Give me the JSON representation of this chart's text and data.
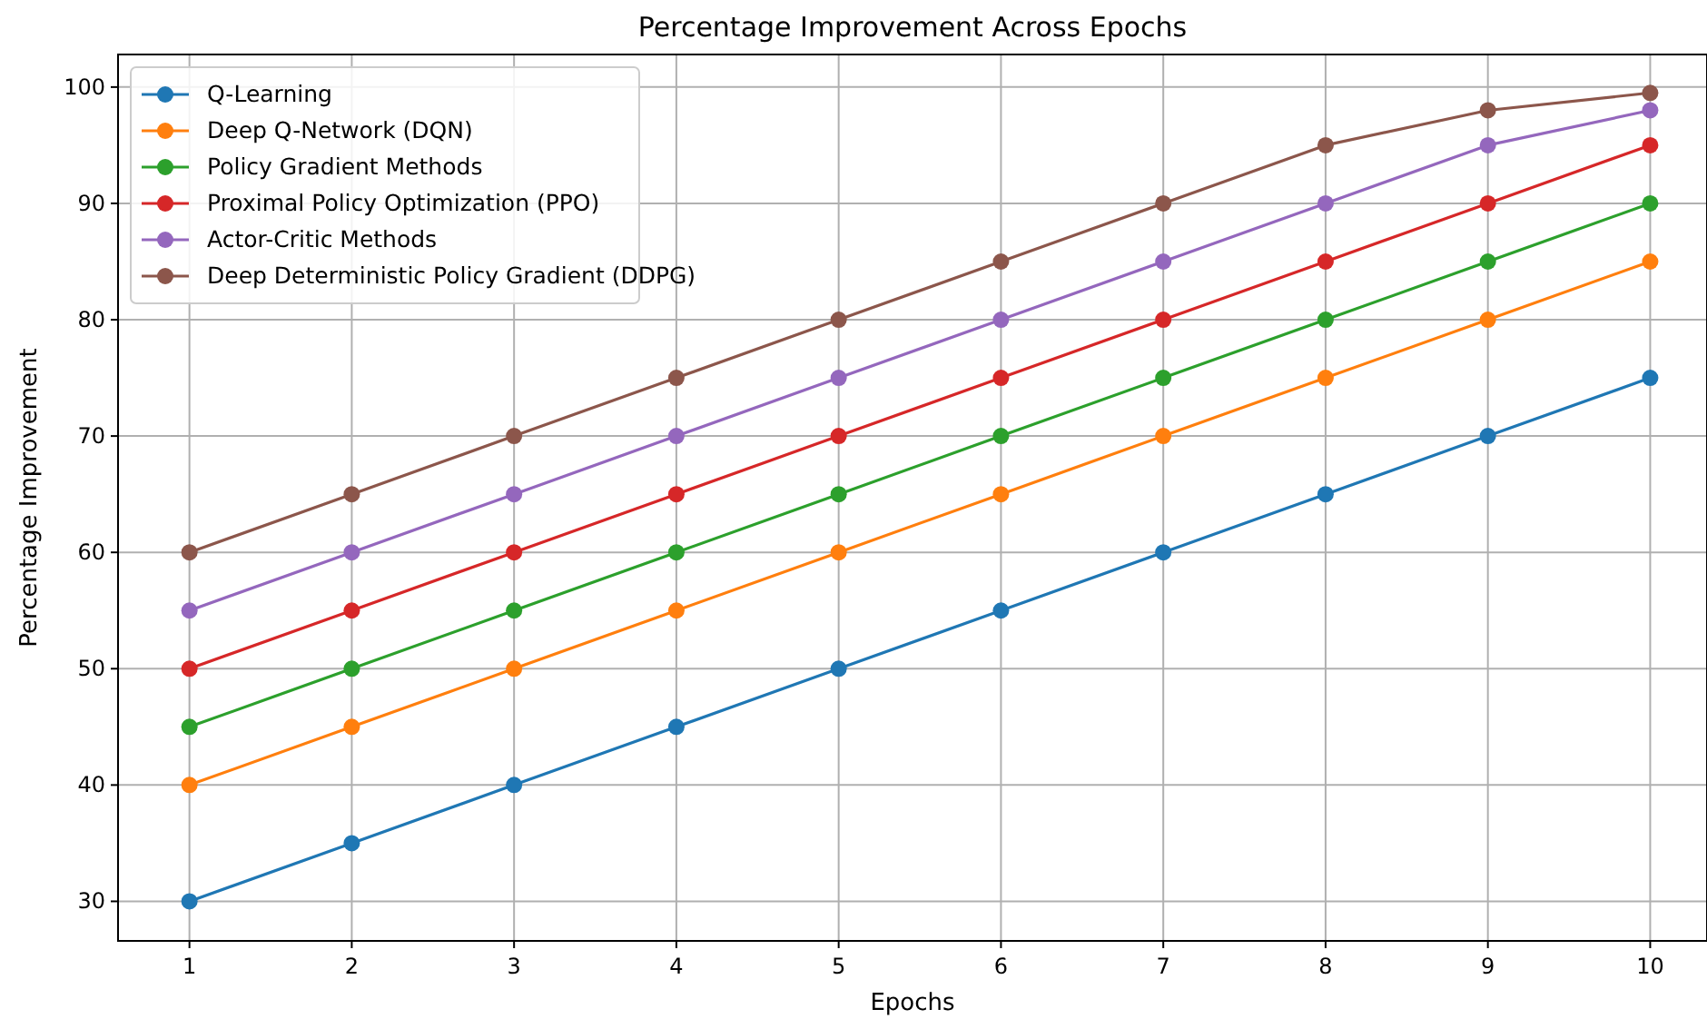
{
  "chart_data": {
    "type": "line",
    "title": "Percentage Improvement Across Epochs",
    "xlabel": "Epochs",
    "ylabel": "Percentage Improvement",
    "x": [
      1,
      2,
      3,
      4,
      5,
      6,
      7,
      8,
      9,
      10
    ],
    "series": [
      {
        "name": "Q-Learning",
        "color": "#1f77b4",
        "values": [
          30,
          35,
          40,
          45,
          50,
          55,
          60,
          65,
          70,
          75
        ]
      },
      {
        "name": "Deep Q-Network (DQN)",
        "color": "#ff7f0e",
        "values": [
          40,
          45,
          50,
          55,
          60,
          65,
          70,
          75,
          80,
          85
        ]
      },
      {
        "name": "Policy Gradient Methods",
        "color": "#2ca02c",
        "values": [
          45,
          50,
          55,
          60,
          65,
          70,
          75,
          80,
          85,
          90
        ]
      },
      {
        "name": "Proximal Policy Optimization (PPO)",
        "color": "#d62728",
        "values": [
          50,
          55,
          60,
          65,
          70,
          75,
          80,
          85,
          90,
          95
        ]
      },
      {
        "name": "Actor-Critic Methods",
        "color": "#9467bd",
        "values": [
          55,
          60,
          65,
          70,
          75,
          80,
          85,
          90,
          95,
          98
        ]
      },
      {
        "name": "Deep Deterministic Policy Gradient (DDPG)",
        "color": "#8c564b",
        "values": [
          60,
          65,
          70,
          75,
          80,
          85,
          90,
          95,
          98,
          99.5
        ]
      }
    ],
    "xlim": [
      0.56,
      10.35
    ],
    "ylim": [
      26.6,
      102.8
    ],
    "xticks": [
      1,
      2,
      3,
      4,
      5,
      6,
      7,
      8,
      9,
      10
    ],
    "yticks": [
      30,
      40,
      50,
      60,
      70,
      80,
      90,
      100
    ],
    "grid": true,
    "legend": "top left",
    "marker": "circle",
    "line_style": "solid"
  }
}
